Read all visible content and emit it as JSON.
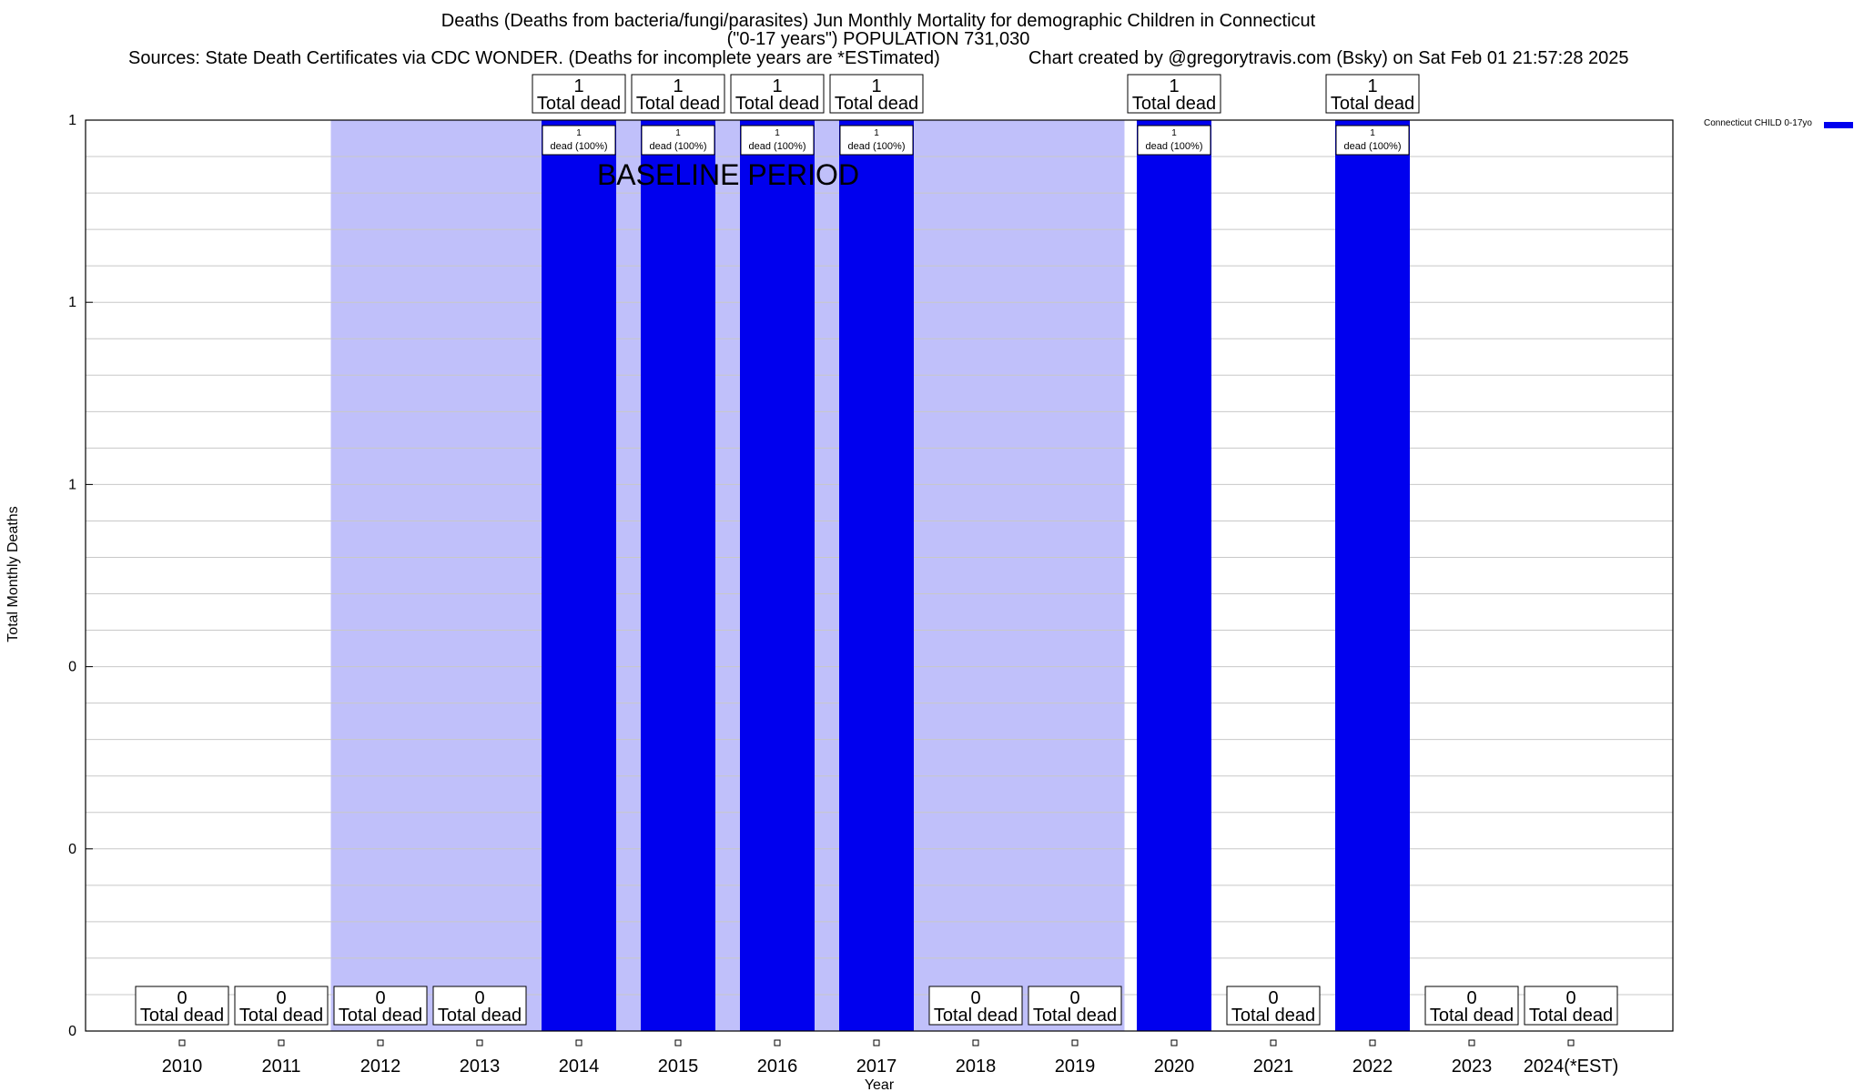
{
  "header": {
    "title_line1": "Deaths (Deaths from bacteria/fungi/parasites) Jun Monthly Mortality for demographic Children in Connecticut",
    "title_line2": "(\"0-17 years\") POPULATION 731,030",
    "sources": "Sources: State Death Certificates via CDC WONDER. (Deaths for incomplete years are *ESTimated)",
    "credit": "Chart created by @gregorytravis.com (Bsky) on Sat Feb 01 21:57:28 2025"
  },
  "legend": {
    "label": "Connecticut CHILD 0-17yo",
    "color": "#0000ee"
  },
  "colors": {
    "bar": "#0000ee",
    "baseline_shade": "#c0c0fa",
    "grid": "#c8c8c8"
  },
  "chart_data": {
    "type": "bar",
    "xlabel": "Year",
    "ylabel": "Total Monthly Deaths",
    "ylim": [
      0,
      1
    ],
    "y_ticks": [
      {
        "value": 0,
        "label": "0"
      },
      {
        "value": 0.2,
        "label": "0"
      },
      {
        "value": 0.4,
        "label": "0"
      },
      {
        "value": 0.6,
        "label": "1"
      },
      {
        "value": 0.8,
        "label": "1"
      },
      {
        "value": 1,
        "label": "1"
      }
    ],
    "categories": [
      "2010",
      "2011",
      "2012",
      "2013",
      "2014",
      "2015",
      "2016",
      "2017",
      "2018",
      "2019",
      "2020",
      "2021",
      "2022",
      "2023",
      "2024(*EST)"
    ],
    "series": [
      {
        "name": "Connecticut CHILD 0-17yo",
        "values": [
          0,
          0,
          0,
          0,
          1,
          1,
          1,
          1,
          0,
          0,
          1,
          0,
          1,
          0,
          0
        ]
      }
    ],
    "total_label": "Total dead",
    "bar_labels": [
      "1",
      "dead (100%)"
    ],
    "baseline_period": {
      "label": "BASELINE PERIOD",
      "from": "2012",
      "to": "2019"
    },
    "grid": true,
    "legend_position": "top-right"
  }
}
